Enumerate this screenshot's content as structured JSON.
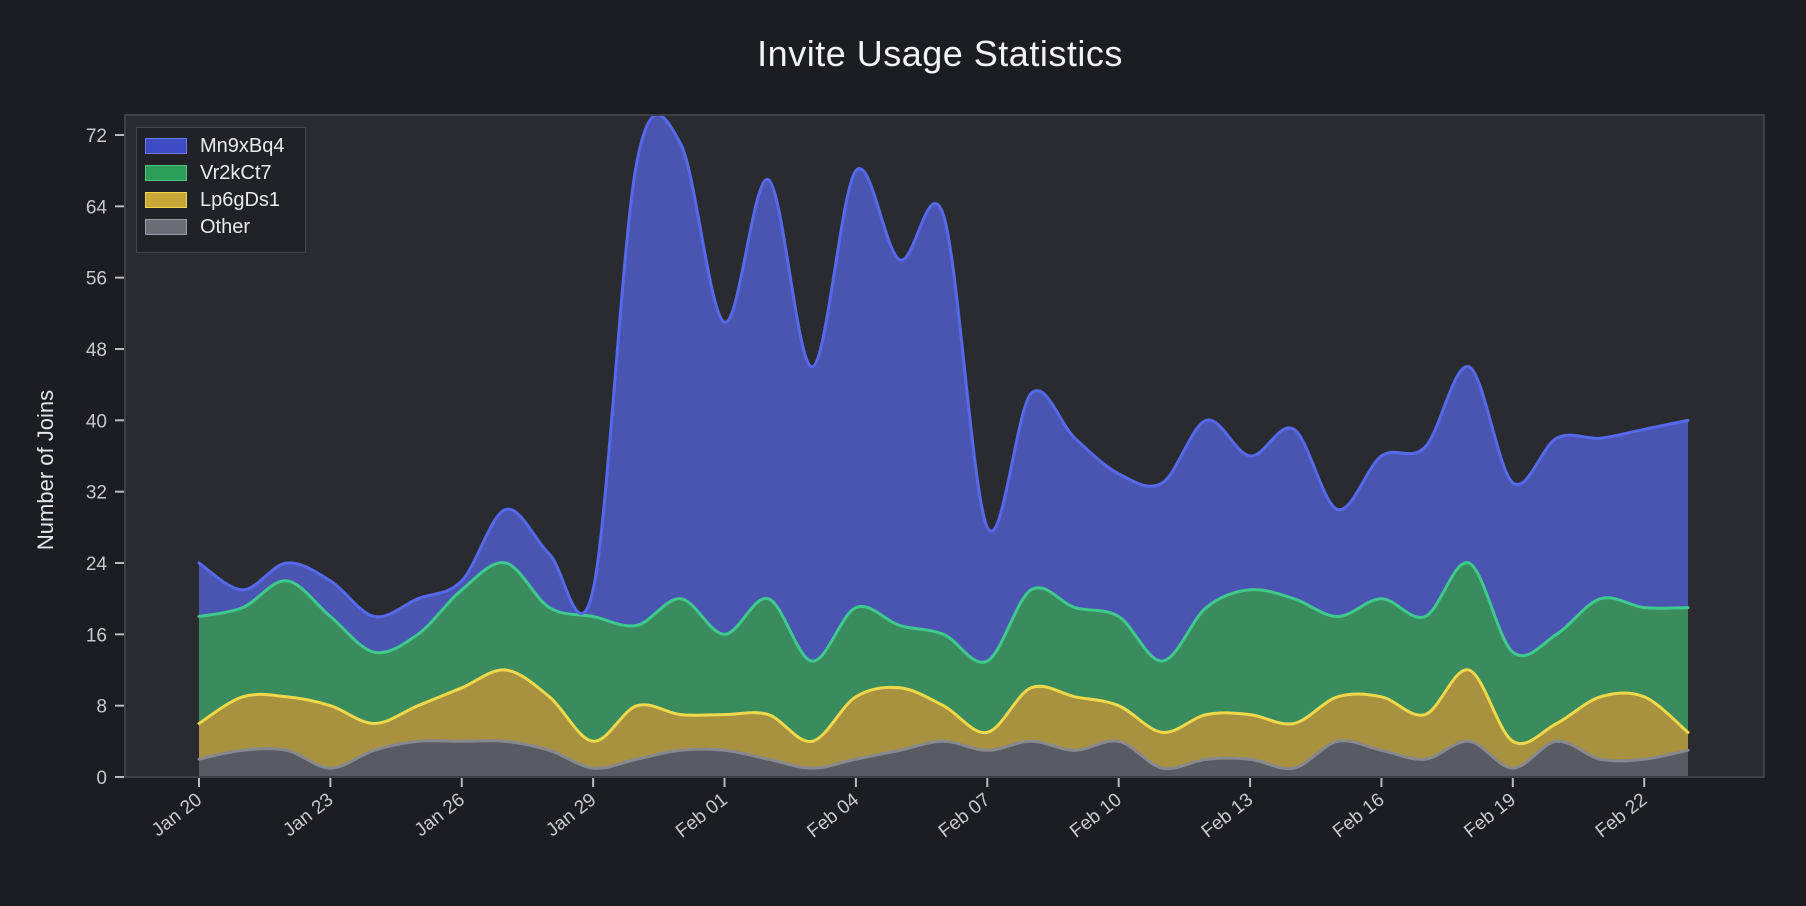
{
  "title": "Invite Usage Statistics",
  "y_axis": {
    "label": "Number of Joins",
    "ticks": [
      0,
      8,
      16,
      24,
      32,
      40,
      48,
      56,
      64,
      72
    ]
  },
  "x_axis": {
    "tick_labels": [
      "Jan 20",
      "Jan 23",
      "Jan 26",
      "Jan 29",
      "Feb 01",
      "Feb 04",
      "Feb 07",
      "Feb 10",
      "Feb 13",
      "Feb 16",
      "Feb 19",
      "Feb 22"
    ],
    "tick_every_days": 3
  },
  "colors": {
    "background": "#1C1D22",
    "plot_background": "#2A2B31",
    "plot_border": "#3E4046",
    "tick_mark": "#B9BABF",
    "tick_label": "#C8C9CD",
    "title_text": "#F2F3F5",
    "axis_title_text": "#E4E5E8",
    "legend_background": "#212227",
    "legend_border": "#43454C",
    "legend_text": "#E9EAEC"
  },
  "legend": {
    "items": [
      {
        "label": "Mn9xBq4",
        "swatch": "#3D4CC4",
        "swatch_border": "#6C79E8"
      },
      {
        "label": "Vr2kCt7",
        "swatch": "#2D9E57",
        "swatch_border": "#4FC486"
      },
      {
        "label": "Lp6gDs1",
        "swatch": "#C9A83A",
        "swatch_border": "#EFD84A"
      },
      {
        "label": "Other",
        "swatch": "#6B6E76",
        "swatch_border": "#9A9CA3"
      }
    ]
  },
  "chart_data": {
    "type": "area",
    "stacked": true,
    "smooth": true,
    "grid": false,
    "legend_position": "top-left",
    "title": "Invite Usage Statistics",
    "xlabel": "",
    "ylabel": "Number of Joins",
    "ylim": [
      0,
      72
    ],
    "x": [
      "Jan 20",
      "Jan 21",
      "Jan 22",
      "Jan 23",
      "Jan 24",
      "Jan 25",
      "Jan 26",
      "Jan 27",
      "Jan 28",
      "Jan 29",
      "Jan 30",
      "Jan 31",
      "Feb 01",
      "Feb 02",
      "Feb 03",
      "Feb 04",
      "Feb 05",
      "Feb 06",
      "Feb 07",
      "Feb 08",
      "Feb 09",
      "Feb 10",
      "Feb 11",
      "Feb 12",
      "Feb 13",
      "Feb 14",
      "Feb 15",
      "Feb 16",
      "Feb 17",
      "Feb 18",
      "Feb 19",
      "Feb 20",
      "Feb 21",
      "Feb 22",
      "Feb 23"
    ],
    "stack_order_bottom_to_top": [
      "Other",
      "Lp6gDs1",
      "Vr2kCt7",
      "Mn9xBq4"
    ],
    "series": [
      {
        "name": "Mn9xBq4",
        "fill": "#4A55B2",
        "stroke": "#5569EA",
        "values": [
          6,
          2,
          2,
          4,
          4,
          4,
          1,
          6,
          6,
          3,
          52,
          51,
          35,
          47,
          33,
          49,
          41,
          47,
          15,
          22,
          19,
          16,
          20,
          21,
          15,
          19,
          12,
          16,
          19,
          22,
          19,
          22,
          18,
          20,
          21
        ]
      },
      {
        "name": "Vr2kCt7",
        "fill": "#3A8C5E",
        "stroke": "#3EC98D",
        "values": [
          12,
          10,
          13,
          10,
          8,
          8,
          11,
          12,
          10,
          14,
          9,
          13,
          9,
          13,
          9,
          10,
          7,
          8,
          8,
          11,
          10,
          10,
          8,
          12,
          14,
          14,
          9,
          11,
          11,
          12,
          10,
          10,
          11,
          10,
          14
        ]
      },
      {
        "name": "Lp6gDs1",
        "fill": "#A8913F",
        "stroke": "#EFD84A",
        "values": [
          4,
          6,
          6,
          7,
          3,
          4,
          6,
          8,
          6,
          3,
          6,
          4,
          4,
          5,
          3,
          7,
          7,
          4,
          2,
          6,
          6,
          4,
          4,
          5,
          5,
          5,
          5,
          6,
          5,
          8,
          3,
          2,
          7,
          7,
          2
        ]
      },
      {
        "name": "Other",
        "fill": "#595B62",
        "stroke": "#87898F",
        "values": [
          2,
          3,
          3,
          1,
          3,
          4,
          4,
          4,
          3,
          1,
          2,
          3,
          3,
          2,
          1,
          2,
          3,
          4,
          3,
          4,
          3,
          4,
          1,
          2,
          2,
          1,
          4,
          3,
          2,
          4,
          1,
          4,
          2,
          2,
          3
        ]
      }
    ]
  }
}
